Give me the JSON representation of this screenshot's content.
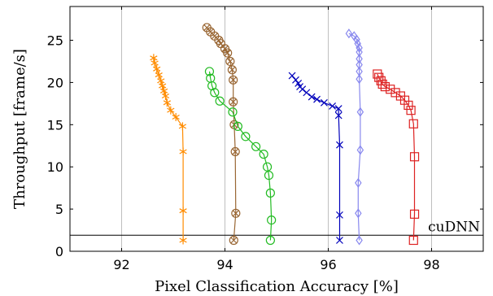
{
  "chart_data": {
    "type": "scatter",
    "xlabel": "Pixel Classification Accuracy [%]",
    "ylabel": "Throughput [frame/s]",
    "xlim": [
      91,
      99
    ],
    "ylim": [
      0,
      29
    ],
    "xticks": [
      92,
      94,
      96,
      98
    ],
    "yticks": [
      0,
      5,
      10,
      15,
      20,
      25
    ],
    "grid": "vertical",
    "reference_line": {
      "label": "cuDNN",
      "y": 1.9
    },
    "series": [
      {
        "color": "#ff8c00",
        "marker": "star",
        "points": [
          [
            92.62,
            22.9
          ],
          [
            92.64,
            22.3
          ],
          [
            92.68,
            21.6
          ],
          [
            92.72,
            20.9
          ],
          [
            92.76,
            20.2
          ],
          [
            92.79,
            19.6
          ],
          [
            92.82,
            19.0
          ],
          [
            92.85,
            18.4
          ],
          [
            92.88,
            17.6
          ],
          [
            92.95,
            16.7
          ],
          [
            93.05,
            15.9
          ],
          [
            93.18,
            14.8
          ],
          [
            93.19,
            11.8
          ],
          [
            93.19,
            4.8
          ],
          [
            93.19,
            1.3
          ]
        ]
      },
      {
        "color": "#996633",
        "marker": "circle-cross",
        "points": [
          [
            93.65,
            26.5
          ],
          [
            93.72,
            26.0
          ],
          [
            93.8,
            25.5
          ],
          [
            93.88,
            25.0
          ],
          [
            93.92,
            24.6
          ],
          [
            94.0,
            24.0
          ],
          [
            94.05,
            23.5
          ],
          [
            94.1,
            22.5
          ],
          [
            94.14,
            21.5
          ],
          [
            94.16,
            20.3
          ],
          [
            94.16,
            17.7
          ],
          [
            94.18,
            15.0
          ],
          [
            94.2,
            11.8
          ],
          [
            94.21,
            4.5
          ],
          [
            94.17,
            1.3
          ]
        ]
      },
      {
        "color": "#22bb22",
        "marker": "circle",
        "points": [
          [
            93.7,
            21.3
          ],
          [
            93.72,
            20.5
          ],
          [
            93.75,
            19.6
          ],
          [
            93.8,
            18.8
          ],
          [
            93.9,
            17.8
          ],
          [
            94.15,
            16.5
          ],
          [
            94.25,
            14.8
          ],
          [
            94.4,
            13.6
          ],
          [
            94.6,
            12.4
          ],
          [
            94.75,
            11.5
          ],
          [
            94.82,
            10.0
          ],
          [
            94.85,
            9.0
          ],
          [
            94.88,
            6.9
          ],
          [
            94.9,
            3.7
          ],
          [
            94.88,
            1.3
          ]
        ]
      },
      {
        "color": "#0000bb",
        "marker": "x",
        "points": [
          [
            95.3,
            20.8
          ],
          [
            95.37,
            20.3
          ],
          [
            95.42,
            19.9
          ],
          [
            95.45,
            19.5
          ],
          [
            95.5,
            19.2
          ],
          [
            95.58,
            18.8
          ],
          [
            95.68,
            18.3
          ],
          [
            95.78,
            18.0
          ],
          [
            95.92,
            17.6
          ],
          [
            96.08,
            17.2
          ],
          [
            96.2,
            16.9
          ],
          [
            96.2,
            16.1
          ],
          [
            96.22,
            12.6
          ],
          [
            96.22,
            4.3
          ],
          [
            96.22,
            1.3
          ]
        ]
      },
      {
        "color": "#8888ee",
        "marker": "diamond",
        "points": [
          [
            96.4,
            25.8
          ],
          [
            96.5,
            25.5
          ],
          [
            96.55,
            25.1
          ],
          [
            96.57,
            24.6
          ],
          [
            96.6,
            24.1
          ],
          [
            96.6,
            23.6
          ],
          [
            96.6,
            22.8
          ],
          [
            96.6,
            22.1
          ],
          [
            96.6,
            21.3
          ],
          [
            96.6,
            20.4
          ],
          [
            96.62,
            16.5
          ],
          [
            96.62,
            12.0
          ],
          [
            96.58,
            8.1
          ],
          [
            96.58,
            4.5
          ],
          [
            96.6,
            1.3
          ]
        ]
      },
      {
        "color": "#dd2222",
        "marker": "square",
        "points": [
          [
            96.95,
            21.0
          ],
          [
            96.98,
            20.6
          ],
          [
            97.02,
            20.2
          ],
          [
            97.05,
            19.8
          ],
          [
            97.1,
            19.5
          ],
          [
            97.2,
            19.2
          ],
          [
            97.3,
            18.8
          ],
          [
            97.4,
            18.4
          ],
          [
            97.48,
            17.9
          ],
          [
            97.55,
            17.3
          ],
          [
            97.6,
            16.7
          ],
          [
            97.65,
            15.1
          ],
          [
            97.67,
            11.2
          ],
          [
            97.67,
            4.4
          ],
          [
            97.65,
            1.3
          ]
        ]
      }
    ]
  }
}
